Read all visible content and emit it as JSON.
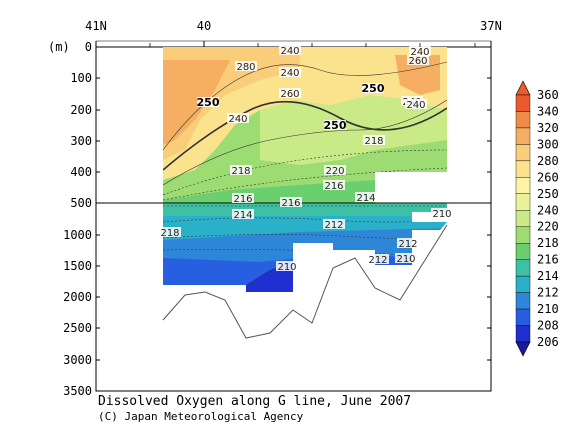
{
  "chart_data": {
    "type": "heatmap",
    "title": "Dissolved Oxygen along G line, June 2007",
    "credit": "(C) Japan Meteorological Agency",
    "ylabel": "(m)",
    "x_ticks": [
      "41N",
      "40",
      "37N"
    ],
    "y_ticks": [
      "0",
      "100",
      "200",
      "300",
      "400",
      "500",
      "1000",
      "1500",
      "2000",
      "2500",
      "3000",
      "3500"
    ],
    "colorbar_levels": [
      "360",
      "340",
      "320",
      "300",
      "280",
      "260",
      "250",
      "240",
      "220",
      "218",
      "216",
      "214",
      "212",
      "210",
      "208",
      "206"
    ],
    "colorbar_colors": [
      "#ea5a2e",
      "#f08c4a",
      "#f5ae62",
      "#f9cd7a",
      "#fbe38e",
      "#fff3a8",
      "#e9f29a",
      "#c9ea87",
      "#9ddc73",
      "#6bcf6f",
      "#3dc0a4",
      "#2bb0c9",
      "#2e86d8",
      "#285fe0",
      "#1f2fd0"
    ],
    "contour_labels": [
      "240",
      "280",
      "240",
      "260",
      "250",
      "240",
      "250",
      "240",
      "240",
      "260",
      "250",
      "218",
      "240",
      "220",
      "218",
      "216",
      "214",
      "216",
      "216",
      "214",
      "210",
      "212",
      "218",
      "212",
      "212",
      "210",
      "210"
    ],
    "ylim": [
      0,
      3500
    ]
  }
}
